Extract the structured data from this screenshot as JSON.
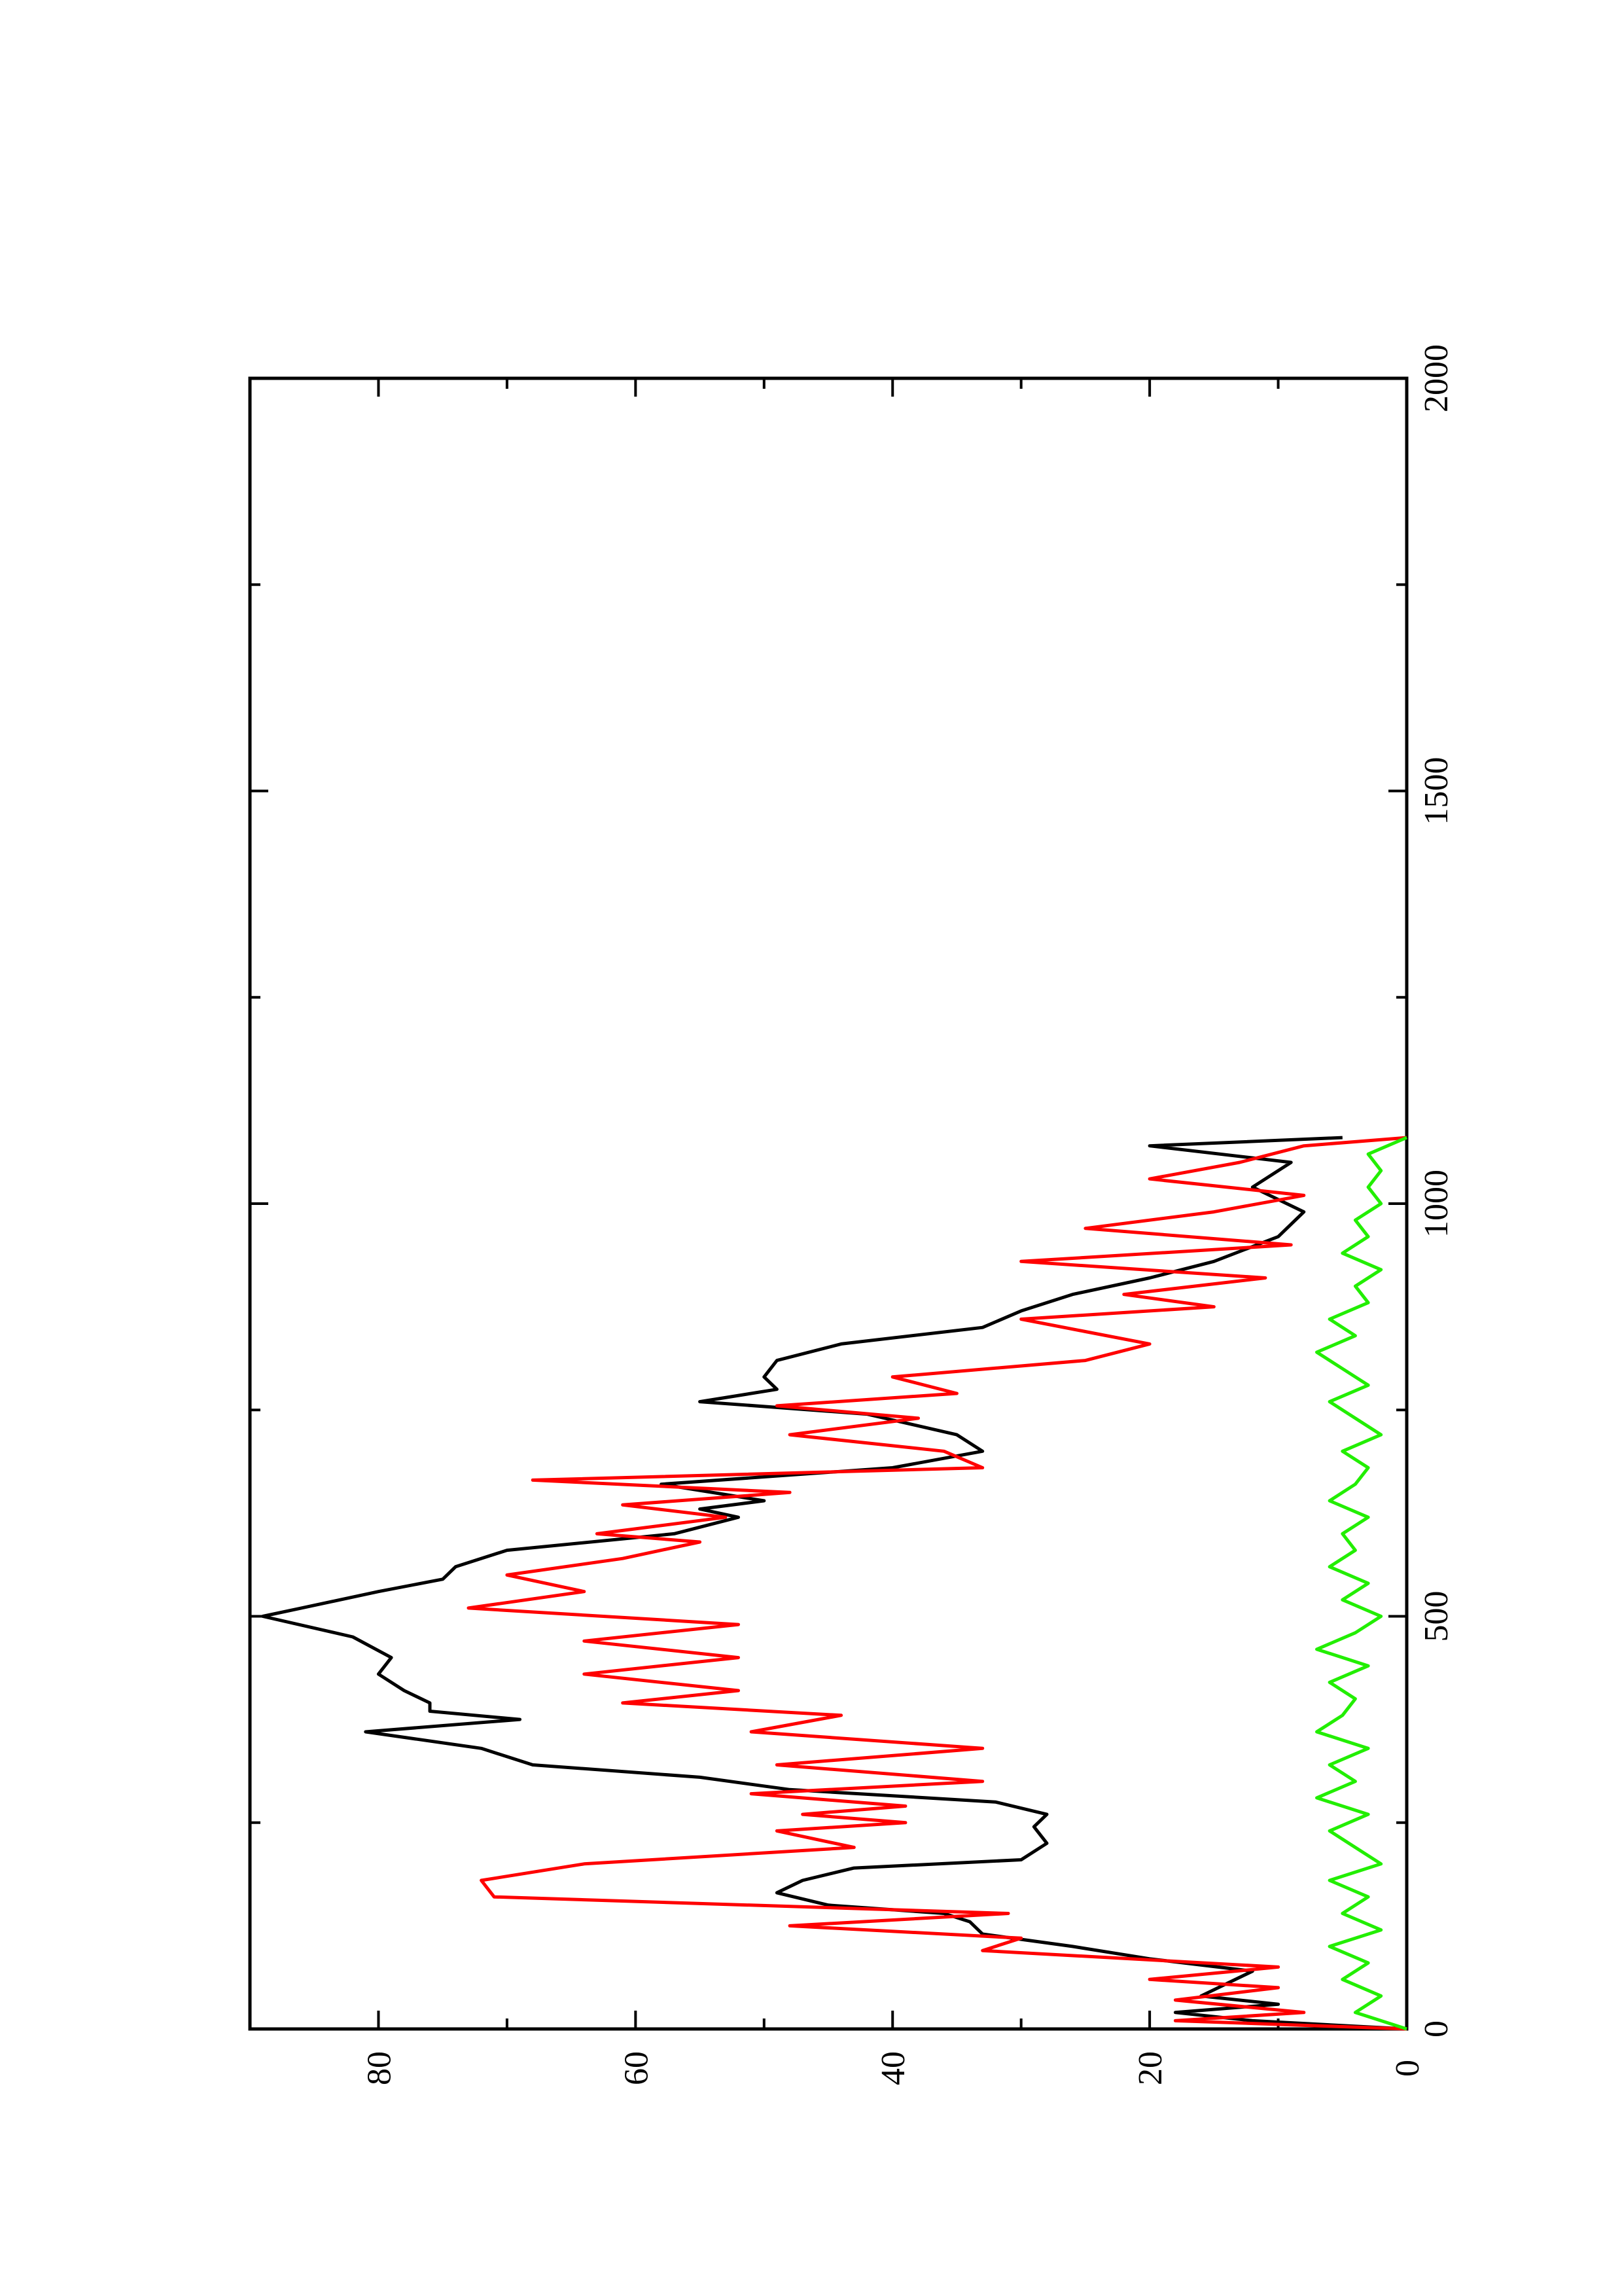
{
  "chart_data": {
    "type": "line",
    "orientation": "rotated-90-ccw",
    "title": "",
    "xlabel": "",
    "ylabel": "",
    "xlim": [
      0,
      2000
    ],
    "ylim": [
      0,
      90
    ],
    "x_ticks": [
      0,
      500,
      1000,
      1500,
      2000
    ],
    "x_minor_ticks": [
      250,
      750,
      1250,
      1750
    ],
    "y_ticks": [
      0,
      20,
      40,
      60,
      80
    ],
    "y_minor_ticks": [
      10,
      30,
      50,
      70
    ],
    "grid": false,
    "legend": "none",
    "series": [
      {
        "color": "#000000",
        "x": [
          0,
          10,
          20,
          30,
          40,
          55,
          70,
          85,
          100,
          115,
          130,
          140,
          150,
          165,
          180,
          195,
          205,
          225,
          245,
          260,
          275,
          290,
          305,
          320,
          340,
          360,
          375,
          385,
          395,
          410,
          430,
          450,
          475,
          500,
          510,
          530,
          545,
          560,
          580,
          600,
          620,
          630,
          640,
          660,
          680,
          700,
          720,
          745,
          760,
          775,
          790,
          810,
          830,
          850,
          870,
          890,
          910,
          930,
          960,
          990,
          1020,
          1050,
          1070,
          1080
        ],
        "y": [
          0,
          12,
          18,
          10,
          16,
          14,
          12,
          20,
          26,
          33,
          34,
          36,
          45,
          49,
          47,
          43,
          30,
          28,
          29,
          28,
          32,
          48,
          55,
          68,
          72,
          81,
          69,
          76,
          76,
          78,
          80,
          79,
          82,
          89,
          86,
          80,
          75,
          74,
          70,
          57,
          52,
          55,
          50,
          58,
          40,
          33,
          35,
          42,
          55,
          49,
          50,
          49,
          44,
          33,
          30,
          26,
          20,
          15,
          10,
          8,
          12,
          9,
          20,
          5
        ]
      },
      {
        "color": "#ff0000",
        "x": [
          0,
          10,
          20,
          35,
          50,
          60,
          75,
          95,
          110,
          125,
          140,
          160,
          180,
          200,
          220,
          240,
          250,
          260,
          270,
          285,
          300,
          320,
          340,
          360,
          380,
          395,
          410,
          430,
          450,
          470,
          490,
          510,
          530,
          550,
          570,
          590,
          600,
          620,
          635,
          650,
          665,
          680,
          700,
          720,
          740,
          755,
          770,
          790,
          810,
          830,
          845,
          860,
          875,
          890,
          910,
          930,
          950,
          970,
          990,
          1010,
          1030,
          1050,
          1070,
          1080
        ],
        "y": [
          0,
          18,
          8,
          18,
          10,
          20,
          10,
          33,
          30,
          48,
          31,
          71,
          72,
          64,
          43,
          49,
          39,
          47,
          39,
          51,
          33,
          49,
          33,
          51,
          44,
          61,
          52,
          64,
          52,
          64,
          52,
          73,
          64,
          70,
          61,
          55,
          63,
          53,
          61,
          48,
          68,
          33,
          36,
          48,
          38,
          49,
          35,
          40,
          25,
          20,
          25,
          30,
          15,
          22,
          11,
          30,
          9,
          25,
          15,
          8,
          20,
          13,
          8,
          0
        ]
      },
      {
        "color": "#22ee00",
        "x": [
          0,
          20,
          40,
          60,
          80,
          100,
          120,
          140,
          160,
          180,
          200,
          220,
          240,
          260,
          280,
          300,
          320,
          340,
          360,
          380,
          400,
          420,
          440,
          460,
          480,
          500,
          520,
          540,
          560,
          580,
          600,
          620,
          640,
          660,
          680,
          700,
          720,
          740,
          760,
          780,
          800,
          820,
          840,
          860,
          880,
          900,
          920,
          940,
          960,
          980,
          1000,
          1020,
          1040,
          1060,
          1080
        ],
        "y": [
          0,
          4,
          2,
          5,
          3,
          6,
          2,
          5,
          3,
          6,
          2,
          4,
          6,
          3,
          7,
          4,
          6,
          3,
          7,
          5,
          4,
          6,
          3,
          7,
          4,
          2,
          5,
          3,
          6,
          4,
          5,
          3,
          6,
          4,
          3,
          5,
          2,
          4,
          6,
          3,
          5,
          7,
          4,
          6,
          3,
          4,
          2,
          5,
          3,
          4,
          2,
          3,
          2,
          3,
          0
        ]
      }
    ]
  }
}
